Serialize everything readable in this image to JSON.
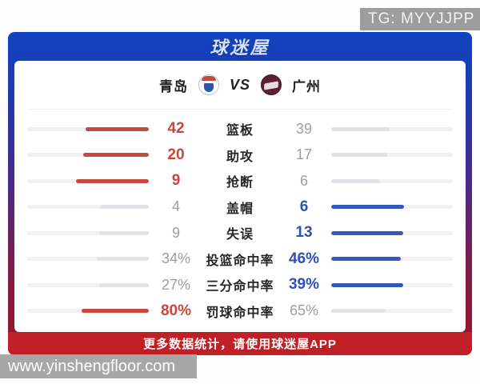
{
  "page": {
    "tg_badge": "TG: MYYJJPP",
    "watermark": "www.yinshengfloor.com"
  },
  "header": {
    "logo_text": "球迷屋"
  },
  "match": {
    "home_name": "青岛",
    "away_name": "广州",
    "vs_label": "VS"
  },
  "stats": [
    {
      "label": "篮板",
      "home": "42",
      "away": "39",
      "home_pct": 52,
      "away_pct": 48,
      "winner": "home"
    },
    {
      "label": "助攻",
      "home": "20",
      "away": "17",
      "home_pct": 54,
      "away_pct": 46,
      "winner": "home"
    },
    {
      "label": "抢断",
      "home": "9",
      "away": "6",
      "home_pct": 60,
      "away_pct": 40,
      "winner": "home"
    },
    {
      "label": "盖帽",
      "home": "4",
      "away": "6",
      "home_pct": 40,
      "away_pct": 60,
      "winner": "away"
    },
    {
      "label": "失误",
      "home": "9",
      "away": "13",
      "home_pct": 41,
      "away_pct": 59,
      "winner": "away"
    },
    {
      "label": "投篮命中率",
      "home": "34%",
      "away": "46%",
      "home_pct": 43,
      "away_pct": 57,
      "winner": "away"
    },
    {
      "label": "三分命中率",
      "home": "27%",
      "away": "39%",
      "home_pct": 41,
      "away_pct": 59,
      "winner": "away"
    },
    {
      "label": "罚球命中率",
      "home": "80%",
      "away": "65%",
      "home_pct": 55,
      "away_pct": 45,
      "winner": "home"
    }
  ],
  "footer": {
    "promo_text": "更多数据统计，请使用球迷屋APP"
  },
  "colors": {
    "home_accent": "#c8463c",
    "away_accent": "#2d51bb",
    "header_blue": "#1546c2",
    "footer_red": "#c01f26",
    "neutral_gray": "#9aa0a6"
  }
}
